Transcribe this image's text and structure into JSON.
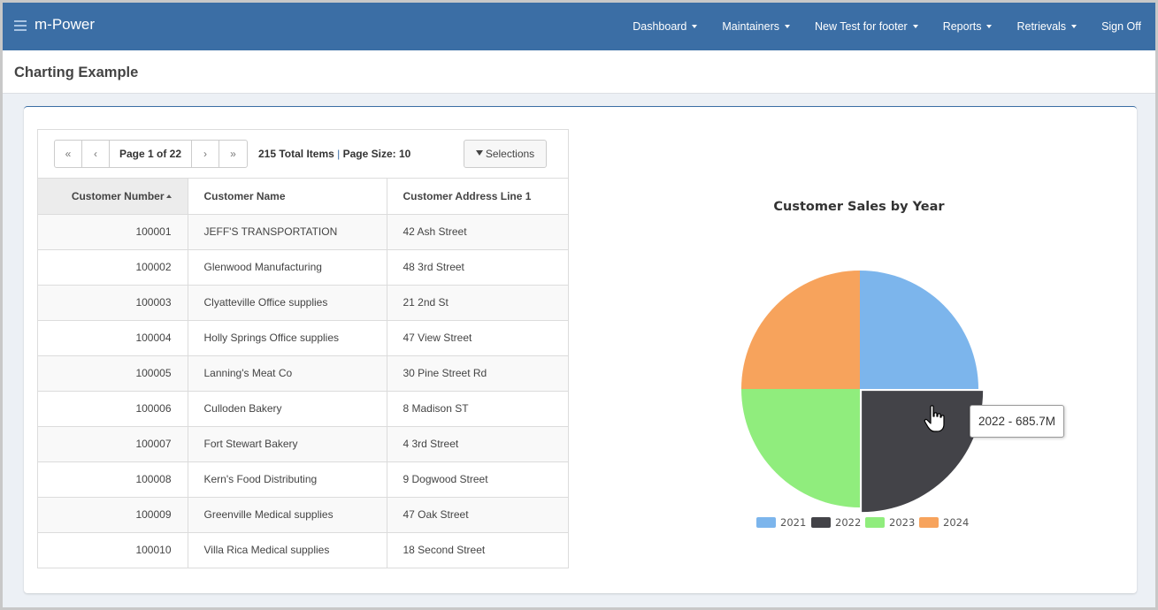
{
  "app": {
    "brand": "m-Power",
    "nav": [
      {
        "label": "Dashboard",
        "dropdown": true
      },
      {
        "label": "Maintainers",
        "dropdown": true
      },
      {
        "label": "New Test for footer",
        "dropdown": true
      },
      {
        "label": "Reports",
        "dropdown": true
      },
      {
        "label": "Retrievals",
        "dropdown": true
      },
      {
        "label": "Sign Off",
        "dropdown": false
      }
    ]
  },
  "page": {
    "title": "Charting Example"
  },
  "grid": {
    "pager": {
      "first": "«",
      "prev": "‹",
      "label": "Page 1 of 22",
      "next": "›",
      "last": "»"
    },
    "total_items": "215 Total Items",
    "separator": "|",
    "page_size": "Page Size: 10",
    "selections_label": "Selections",
    "columns": [
      "Customer Number",
      "Customer Name",
      "Customer Address Line 1"
    ],
    "rows": [
      {
        "number": "100001",
        "name": "JEFF'S TRANSPORTATION",
        "address": "42 Ash Street"
      },
      {
        "number": "100002",
        "name": "Glenwood Manufacturing",
        "address": "48 3rd Street"
      },
      {
        "number": "100003",
        "name": "Clyatteville Office supplies",
        "address": "21 2nd St"
      },
      {
        "number": "100004",
        "name": "Holly Springs Office supplies",
        "address": "47 View Street"
      },
      {
        "number": "100005",
        "name": "Lanning's Meat Co",
        "address": "30 Pine Street Rd"
      },
      {
        "number": "100006",
        "name": "Culloden Bakery",
        "address": "8 Madison ST"
      },
      {
        "number": "100007",
        "name": "Fort Stewart Bakery",
        "address": "4 3rd Street"
      },
      {
        "number": "100008",
        "name": "Kern's Food Distributing",
        "address": "9 Dogwood Street"
      },
      {
        "number": "100009",
        "name": "Greenville Medical supplies",
        "address": "47 Oak Street"
      },
      {
        "number": "100010",
        "name": "Villa Rica Medical supplies",
        "address": "18 Second Street"
      }
    ]
  },
  "chart_data": {
    "type": "pie",
    "title": "Customer Sales by Year",
    "categories": [
      "2021",
      "2022",
      "2023",
      "2024"
    ],
    "values": [
      685.7,
      685.7,
      685.7,
      685.7
    ],
    "colors": [
      "#7cb5ec",
      "#434348",
      "#90ed7d",
      "#f7a35c"
    ],
    "hovered_index": 1,
    "legend": "bottom",
    "tooltip": "2022 - 685.7M"
  }
}
